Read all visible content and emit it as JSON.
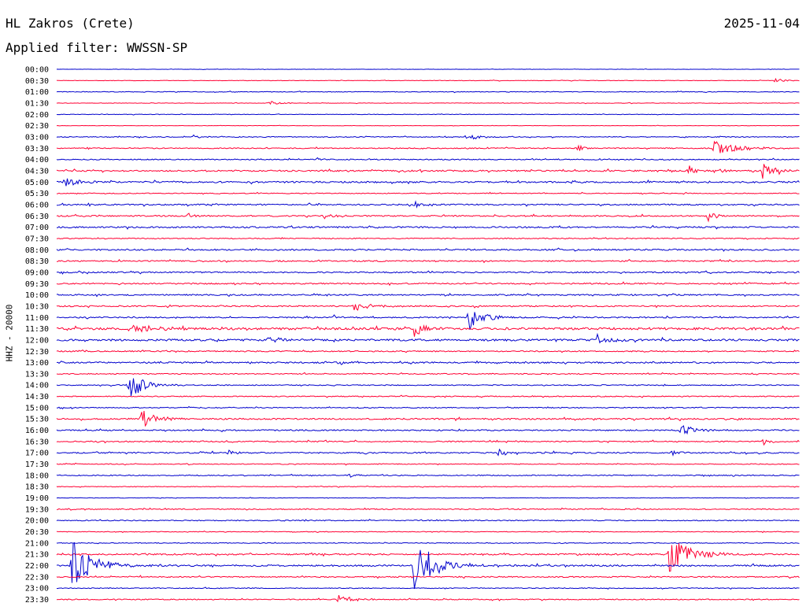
{
  "header": {
    "station": "HL Zakros (Crete)",
    "date": "2025-11-04",
    "filter": "Applied filter: WWSSN-SP",
    "channel": "HHZ - 20000"
  },
  "colors": {
    "even_trace": "#0000cc",
    "odd_trace": "#ff0033"
  },
  "chart_data": {
    "type": "line",
    "title": "HL Zakros (Crete)",
    "subtitle": "Applied filter: WWSSN-SP",
    "ylabel": "HHZ - 20000",
    "xlabel": "",
    "grid": false,
    "row_interval_minutes": 30,
    "categories": [
      "00:00",
      "00:30",
      "01:00",
      "01:30",
      "02:00",
      "02:30",
      "03:00",
      "03:30",
      "04:00",
      "04:30",
      "05:00",
      "05:30",
      "06:00",
      "06:30",
      "07:00",
      "07:30",
      "08:00",
      "08:30",
      "09:00",
      "09:30",
      "10:00",
      "10:30",
      "11:00",
      "11:30",
      "12:00",
      "12:30",
      "13:00",
      "13:30",
      "14:00",
      "14:30",
      "15:00",
      "15:30",
      "16:00",
      "16:30",
      "17:00",
      "17:30",
      "18:00",
      "18:30",
      "19:00",
      "19:30",
      "20:00",
      "20:30",
      "21:00",
      "21:30",
      "22:00",
      "22:30",
      "23:00",
      "23:30"
    ],
    "noise_level": [
      0.2,
      0.3,
      0.4,
      0.3,
      0.3,
      0.2,
      0.5,
      0.6,
      0.6,
      0.9,
      1.0,
      0.5,
      0.8,
      0.8,
      0.9,
      0.6,
      0.9,
      0.8,
      0.8,
      0.8,
      0.8,
      0.8,
      0.8,
      1.4,
      1.2,
      0.7,
      0.9,
      0.6,
      0.6,
      0.6,
      0.6,
      0.9,
      0.8,
      0.7,
      0.8,
      0.5,
      0.6,
      0.4,
      0.3,
      0.6,
      0.6,
      0.4,
      0.5,
      0.9,
      1.0,
      0.7,
      0.5,
      0.6
    ],
    "events": [
      {
        "row": 1,
        "minute": 29,
        "amp": 6,
        "dur": 0.5
      },
      {
        "row": 3,
        "minute": 8.5,
        "amp": 3,
        "dur": 1
      },
      {
        "row": 6,
        "minute": 16.5,
        "amp": 7,
        "dur": 1
      },
      {
        "row": 6,
        "minute": 5.5,
        "amp": 3,
        "dur": 0.5
      },
      {
        "row": 7,
        "minute": 21,
        "amp": 5,
        "dur": 0.5
      },
      {
        "row": 7,
        "minute": 26.5,
        "amp": 9,
        "dur": 2
      },
      {
        "row": 8,
        "minute": 10.5,
        "amp": 4,
        "dur": 0.5
      },
      {
        "row": 9,
        "minute": 25.5,
        "amp": 8,
        "dur": 0.5
      },
      {
        "row": 9,
        "minute": 28.5,
        "amp": 10,
        "dur": 1
      },
      {
        "row": 9,
        "minute": 26.8,
        "amp": 7,
        "dur": 0.5
      },
      {
        "row": 10,
        "minute": 0.3,
        "amp": 7,
        "dur": 1
      },
      {
        "row": 12,
        "minute": 14.3,
        "amp": 5,
        "dur": 1
      },
      {
        "row": 13,
        "minute": 5.3,
        "amp": 6,
        "dur": 0.5
      },
      {
        "row": 13,
        "minute": 10.8,
        "amp": 4,
        "dur": 1
      },
      {
        "row": 13,
        "minute": 26.3,
        "amp": 8,
        "dur": 0.5
      },
      {
        "row": 21,
        "minute": 12,
        "amp": 5,
        "dur": 2
      },
      {
        "row": 22,
        "minute": 16.6,
        "amp": 20,
        "dur": 1
      },
      {
        "row": 22,
        "minute": 11.2,
        "amp": 4,
        "dur": 0.5
      },
      {
        "row": 23,
        "minute": 14.4,
        "amp": 10,
        "dur": 1
      },
      {
        "row": 23,
        "minute": 3,
        "amp": 5,
        "dur": 2
      },
      {
        "row": 24,
        "minute": 8.5,
        "amp": 5,
        "dur": 1
      },
      {
        "row": 24,
        "minute": 21.8,
        "amp": 7,
        "dur": 1
      },
      {
        "row": 26,
        "minute": 11.3,
        "amp": 6,
        "dur": 0.5
      },
      {
        "row": 28,
        "minute": 2.9,
        "amp": 24,
        "dur": 1
      },
      {
        "row": 31,
        "minute": 3.4,
        "amp": 14,
        "dur": 1
      },
      {
        "row": 32,
        "minute": 25.2,
        "amp": 10,
        "dur": 1
      },
      {
        "row": 33,
        "minute": 28.5,
        "amp": 5,
        "dur": 0.5
      },
      {
        "row": 34,
        "minute": 6.9,
        "amp": 4,
        "dur": 0.5
      },
      {
        "row": 34,
        "minute": 17.8,
        "amp": 8,
        "dur": 0.5
      },
      {
        "row": 34,
        "minute": 24.8,
        "amp": 6,
        "dur": 0.5
      },
      {
        "row": 36,
        "minute": 11.8,
        "amp": 3,
        "dur": 0.5
      },
      {
        "row": 43,
        "minute": 24.7,
        "amp": 28,
        "dur": 1.5
      },
      {
        "row": 44,
        "minute": 0.6,
        "amp": 34,
        "dur": 1.5
      },
      {
        "row": 44,
        "minute": 14.4,
        "amp": 40,
        "dur": 1.5
      },
      {
        "row": 44,
        "minute": 2.2,
        "amp": 6,
        "dur": 0.5
      },
      {
        "row": 47,
        "minute": 11.3,
        "amp": 8,
        "dur": 1
      }
    ]
  }
}
